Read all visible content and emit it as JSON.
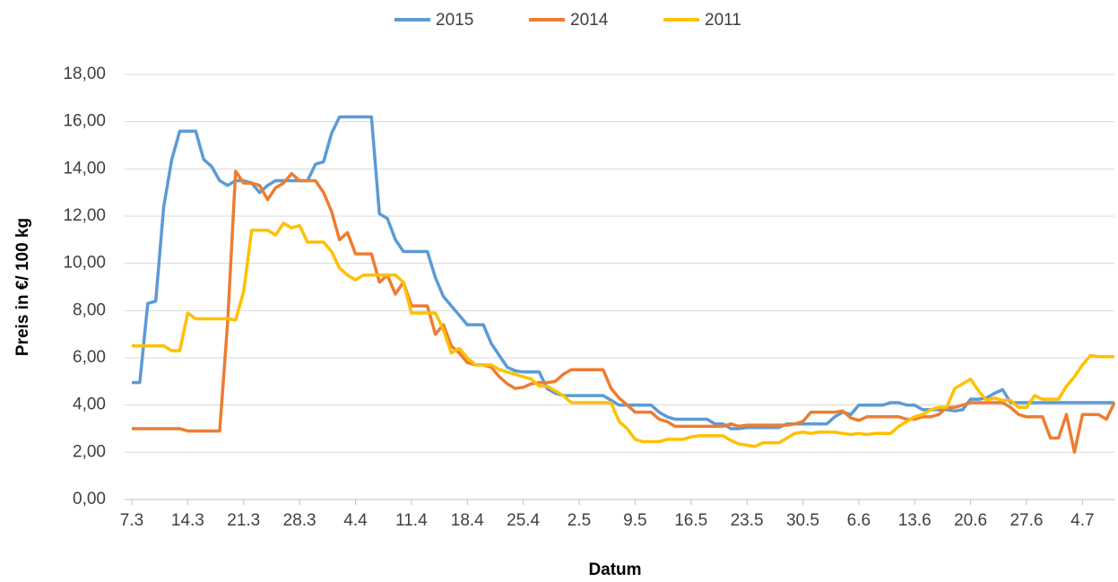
{
  "chart_data": {
    "type": "line",
    "x_label": "Datum",
    "y_label": "Preis in €/ 100 kg",
    "legend": "top",
    "grid": true,
    "ylim": [
      0,
      18
    ],
    "yticks": [
      {
        "value": 0,
        "label": "0,00"
      },
      {
        "value": 2,
        "label": "2,00"
      },
      {
        "value": 4,
        "label": "4,00"
      },
      {
        "value": 6,
        "label": "6,00"
      },
      {
        "value": 8,
        "label": "8,00"
      },
      {
        "value": 10,
        "label": "10,00"
      },
      {
        "value": 12,
        "label": "12,00"
      },
      {
        "value": 14,
        "label": "14,00"
      },
      {
        "value": 16,
        "label": "16,00"
      },
      {
        "value": 18,
        "label": "18,00"
      }
    ],
    "categories": [
      "7.3",
      null,
      null,
      null,
      null,
      null,
      null,
      "14.3",
      null,
      null,
      null,
      null,
      null,
      null,
      "21.3",
      null,
      null,
      null,
      null,
      null,
      null,
      "28.3",
      null,
      null,
      null,
      null,
      null,
      null,
      "4.4",
      null,
      null,
      null,
      null,
      null,
      null,
      "11.4",
      null,
      null,
      null,
      null,
      null,
      null,
      "18.4",
      null,
      null,
      null,
      null,
      null,
      null,
      "25.4",
      null,
      null,
      null,
      null,
      null,
      null,
      "2.5",
      null,
      null,
      null,
      null,
      null,
      null,
      "9.5",
      null,
      null,
      null,
      null,
      null,
      null,
      "16.5",
      null,
      null,
      null,
      null,
      null,
      null,
      "23.5",
      null,
      null,
      null,
      null,
      null,
      null,
      "30.5",
      null,
      null,
      null,
      null,
      null,
      null,
      "6.6",
      null,
      null,
      null,
      null,
      null,
      null,
      "13.6",
      null,
      null,
      null,
      null,
      null,
      null,
      "20.6",
      null,
      null,
      null,
      null,
      null,
      null,
      "27.6",
      null,
      null,
      null,
      null,
      null,
      null,
      "4.7",
      null,
      null,
      null,
      null
    ],
    "series": [
      {
        "name": "2015",
        "color": "#5b9bd5",
        "values": [
          4.95,
          4.95,
          8.3,
          8.4,
          12.4,
          14.4,
          15.6,
          15.6,
          15.6,
          14.4,
          14.1,
          13.5,
          13.3,
          13.5,
          13.5,
          13.4,
          13.0,
          13.3,
          13.5,
          13.5,
          13.5,
          13.5,
          13.5,
          14.2,
          14.3,
          15.5,
          16.2,
          16.2,
          16.2,
          16.2,
          16.2,
          12.1,
          11.9,
          11.0,
          10.5,
          10.5,
          10.5,
          10.5,
          9.4,
          8.6,
          8.2,
          7.8,
          7.4,
          7.4,
          7.4,
          6.6,
          6.1,
          5.6,
          5.45,
          5.4,
          5.4,
          5.4,
          4.7,
          4.5,
          4.4,
          4.4,
          4.4,
          4.4,
          4.4,
          4.4,
          4.2,
          4.0,
          4.0,
          4.0,
          4.0,
          4.0,
          3.7,
          3.5,
          3.4,
          3.4,
          3.4,
          3.4,
          3.4,
          3.2,
          3.2,
          3.0,
          3.0,
          3.05,
          3.05,
          3.05,
          3.05,
          3.05,
          3.2,
          3.2,
          3.2,
          3.2,
          3.2,
          3.2,
          3.5,
          3.7,
          3.6,
          4.0,
          4.0,
          4.0,
          4.0,
          4.1,
          4.1,
          4.0,
          4.0,
          3.8,
          3.8,
          3.8,
          3.8,
          3.75,
          3.8,
          4.25,
          4.25,
          4.3,
          4.5,
          4.65,
          4.1,
          4.1,
          4.1,
          4.1,
          4.1,
          4.1,
          4.1,
          4.1,
          4.1,
          4.1,
          4.1,
          4.1,
          4.1,
          4.1
        ]
      },
      {
        "name": "2014",
        "color": "#ed7d31",
        "values": [
          3.0,
          3.0,
          3.0,
          3.0,
          3.0,
          3.0,
          3.0,
          2.9,
          2.9,
          2.9,
          2.9,
          2.9,
          7.5,
          13.9,
          13.4,
          13.4,
          13.3,
          12.7,
          13.2,
          13.4,
          13.8,
          13.5,
          13.5,
          13.5,
          13.0,
          12.2,
          11.0,
          11.3,
          10.4,
          10.4,
          10.4,
          9.2,
          9.5,
          8.7,
          9.2,
          8.2,
          8.2,
          8.2,
          7.0,
          7.4,
          6.5,
          6.2,
          5.8,
          5.7,
          5.7,
          5.6,
          5.2,
          4.9,
          4.7,
          4.75,
          4.9,
          4.95,
          4.95,
          5.0,
          5.3,
          5.5,
          5.5,
          5.5,
          5.5,
          5.5,
          4.7,
          4.3,
          4.0,
          3.7,
          3.7,
          3.7,
          3.4,
          3.3,
          3.1,
          3.1,
          3.1,
          3.1,
          3.1,
          3.1,
          3.1,
          3.2,
          3.1,
          3.15,
          3.15,
          3.15,
          3.15,
          3.15,
          3.15,
          3.2,
          3.3,
          3.7,
          3.7,
          3.7,
          3.7,
          3.75,
          3.45,
          3.35,
          3.5,
          3.5,
          3.5,
          3.5,
          3.5,
          3.4,
          3.4,
          3.5,
          3.5,
          3.6,
          3.9,
          3.9,
          4.0,
          4.1,
          4.1,
          4.1,
          4.1,
          4.1,
          3.9,
          3.6,
          3.5,
          3.5,
          3.5,
          2.6,
          2.6,
          3.6,
          2.0,
          3.6,
          3.6,
          3.6,
          3.4,
          4.1
        ]
      },
      {
        "name": "2011",
        "color": "#ffc000",
        "values": [
          6.5,
          6.5,
          6.5,
          6.5,
          6.5,
          6.3,
          6.3,
          7.9,
          7.65,
          7.65,
          7.65,
          7.65,
          7.65,
          7.6,
          8.8,
          11.4,
          11.4,
          11.4,
          11.2,
          11.7,
          11.5,
          11.6,
          10.9,
          10.9,
          10.9,
          10.5,
          9.8,
          9.5,
          9.3,
          9.5,
          9.5,
          9.5,
          9.5,
          9.5,
          9.2,
          7.9,
          7.9,
          7.9,
          7.9,
          7.2,
          6.2,
          6.4,
          6.0,
          5.7,
          5.7,
          5.7,
          5.5,
          5.4,
          5.3,
          5.2,
          5.1,
          4.8,
          4.8,
          4.6,
          4.4,
          4.1,
          4.1,
          4.1,
          4.1,
          4.1,
          4.1,
          3.3,
          3.0,
          2.55,
          2.45,
          2.45,
          2.45,
          2.55,
          2.55,
          2.55,
          2.65,
          2.7,
          2.7,
          2.7,
          2.7,
          2.5,
          2.35,
          2.3,
          2.25,
          2.4,
          2.4,
          2.4,
          2.6,
          2.8,
          2.85,
          2.8,
          2.85,
          2.85,
          2.85,
          2.8,
          2.75,
          2.8,
          2.75,
          2.8,
          2.8,
          2.8,
          3.1,
          3.3,
          3.5,
          3.6,
          3.8,
          3.9,
          3.9,
          4.7,
          4.9,
          5.1,
          4.6,
          4.2,
          4.3,
          4.2,
          4.2,
          3.9,
          3.9,
          4.4,
          4.25,
          4.25,
          4.25,
          4.8,
          5.2,
          5.7,
          6.1,
          6.05,
          6.05,
          6.05
        ]
      }
    ]
  }
}
